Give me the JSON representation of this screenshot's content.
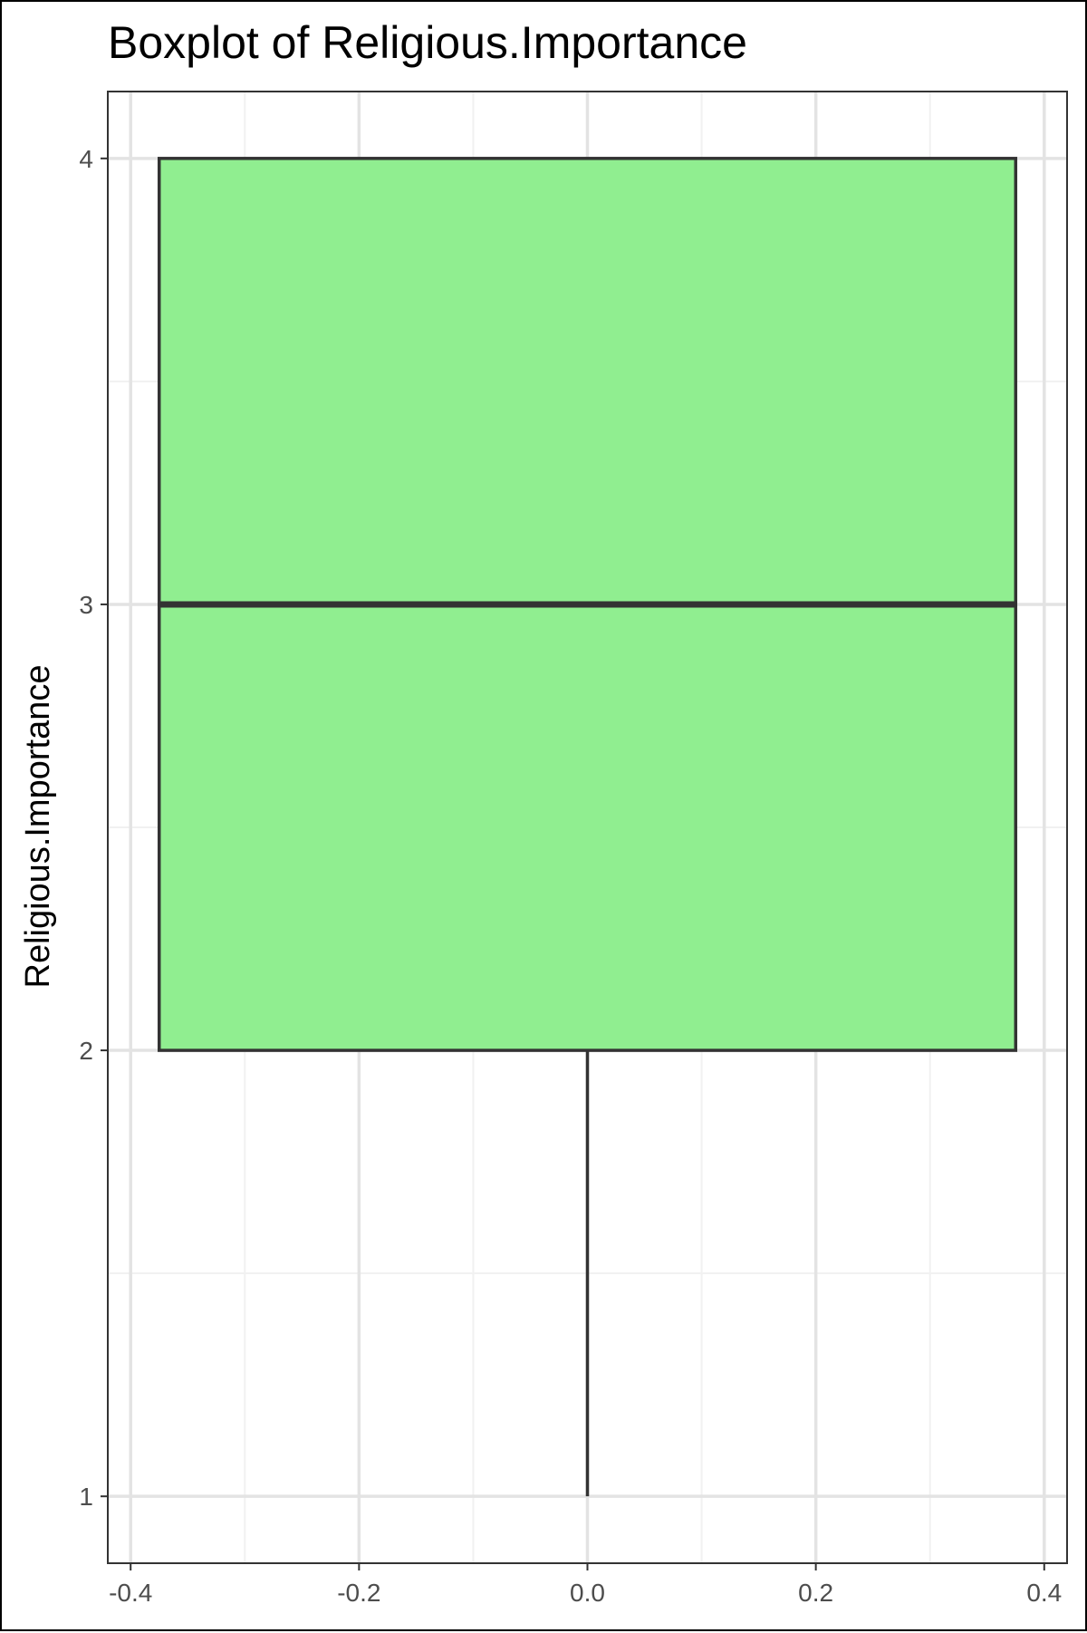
{
  "chart_data": {
    "type": "box",
    "title": "Boxplot of Religious.Importance",
    "xlabel": "",
    "ylabel": "Religious.Importance",
    "xlim": [
      -0.42,
      0.42
    ],
    "ylim": [
      0.85,
      4.15
    ],
    "x_ticks": [
      -0.4,
      -0.2,
      0.0,
      0.2,
      0.4
    ],
    "x_tick_labels": [
      "-0.4",
      "-0.2",
      "0.0",
      "0.2",
      "0.4"
    ],
    "x_minor_ticks": [
      -0.3,
      -0.1,
      0.1,
      0.3
    ],
    "y_ticks": [
      1,
      2,
      3,
      4
    ],
    "y_tick_labels": [
      "1",
      "2",
      "3",
      "4"
    ],
    "y_minor_ticks": [
      1.5,
      2.5,
      3.5
    ],
    "grid": true,
    "legend": "none",
    "box": {
      "x_center": 0.0,
      "x_min": -0.375,
      "x_max": 0.375,
      "min": 1,
      "q1": 2,
      "median": 3,
      "q3": 4,
      "max": 4
    },
    "colors": {
      "box_fill": "#90EE90",
      "box_outline": "#333333",
      "grid_major": "#e3e3e3",
      "grid_minor": "#f1f1f1",
      "tick_text": "#4d4d4d",
      "panel_border": "#333333"
    }
  }
}
